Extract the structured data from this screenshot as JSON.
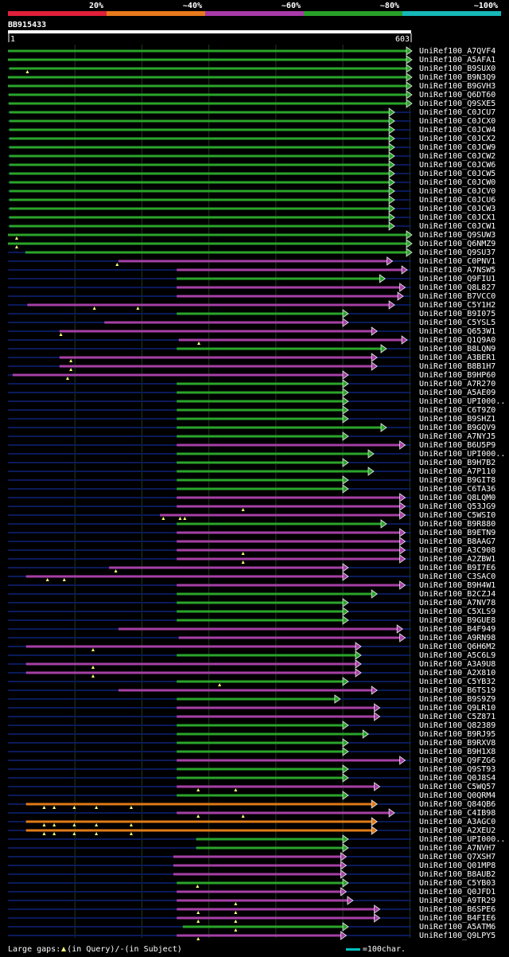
{
  "title": "BB915433",
  "query_length": 603,
  "ruler": {
    "start": "1",
    "end": "603"
  },
  "legend": [
    {
      "label": "20%",
      "color": "#e0203a"
    },
    {
      "label": "~40%",
      "color": "#e87a1c"
    },
    {
      "label": "~60%",
      "color": "#a83aa8"
    },
    {
      "label": "~80%",
      "color": "#28a028"
    },
    {
      "label": "~100%",
      "color": "#16b8b8"
    }
  ],
  "colors": {
    "green": "#2aa52a",
    "purple": "#a640a6",
    "orange": "#e07a18",
    "gap": "#ffff80",
    "dark": "#0a1a5a"
  },
  "footer": {
    "text1": "Large gaps: ",
    "text2": "(in Query)/",
    "text3": "(in Subject)",
    "scale": "=100char."
  },
  "hits": [
    {
      "id": "UniRef100_A7QVF4",
      "s": 1,
      "e": 603,
      "c": "g",
      "m": []
    },
    {
      "id": "UniRef100_A5AFA1",
      "s": 1,
      "e": 603,
      "c": "g",
      "m": []
    },
    {
      "id": "UniRef100_B9SUX0",
      "s": 3,
      "e": 603,
      "c": "g",
      "m": [
        30
      ]
    },
    {
      "id": "UniRef100_B9N3Q9",
      "s": 1,
      "e": 603,
      "c": "g",
      "m": []
    },
    {
      "id": "UniRef100_B9GVH3",
      "s": 1,
      "e": 603,
      "c": "g",
      "m": []
    },
    {
      "id": "UniRef100_Q6DT60",
      "s": 2,
      "e": 603,
      "c": "g",
      "m": []
    },
    {
      "id": "UniRef100_Q9SXE5",
      "s": 2,
      "e": 603,
      "c": "g",
      "m": []
    },
    {
      "id": "UniRef100_C0JCU7",
      "s": 3,
      "e": 577,
      "c": "g",
      "m": []
    },
    {
      "id": "UniRef100_C0JCX0",
      "s": 3,
      "e": 577,
      "c": "g",
      "m": []
    },
    {
      "id": "UniRef100_C0JCW4",
      "s": 3,
      "e": 577,
      "c": "g",
      "m": []
    },
    {
      "id": "UniRef100_C0JCX2",
      "s": 3,
      "e": 577,
      "c": "g",
      "m": []
    },
    {
      "id": "UniRef100_C0JCW9",
      "s": 3,
      "e": 577,
      "c": "g",
      "m": []
    },
    {
      "id": "UniRef100_C0JCW2",
      "s": 3,
      "e": 577,
      "c": "g",
      "m": []
    },
    {
      "id": "UniRef100_C0JCW6",
      "s": 3,
      "e": 577,
      "c": "g",
      "m": []
    },
    {
      "id": "UniRef100_C0JCW5",
      "s": 3,
      "e": 577,
      "c": "g",
      "m": []
    },
    {
      "id": "UniRef100_C0JCW0",
      "s": 3,
      "e": 577,
      "c": "g",
      "m": []
    },
    {
      "id": "UniRef100_C0JCV0",
      "s": 3,
      "e": 577,
      "c": "g",
      "m": []
    },
    {
      "id": "UniRef100_C0JCU6",
      "s": 3,
      "e": 577,
      "c": "g",
      "m": []
    },
    {
      "id": "UniRef100_C0JCW3",
      "s": 3,
      "e": 577,
      "c": "g",
      "m": []
    },
    {
      "id": "UniRef100_C0JCX1",
      "s": 3,
      "e": 577,
      "c": "g",
      "m": []
    },
    {
      "id": "UniRef100_C0JCW1",
      "s": 3,
      "e": 577,
      "c": "g",
      "m": []
    },
    {
      "id": "UniRef100_Q9SUW3",
      "s": 1,
      "e": 603,
      "c": "g",
      "m": [
        14
      ]
    },
    {
      "id": "UniRef100_Q6NMZ9",
      "s": 1,
      "e": 603,
      "c": "g",
      "m": [
        14
      ]
    },
    {
      "id": "UniRef100_Q9SU37",
      "s": 27,
      "e": 603,
      "c": "g",
      "m": []
    },
    {
      "id": "UniRef100_C0PNV1",
      "s": 166,
      "e": 574,
      "c": "p",
      "m": [
        164
      ]
    },
    {
      "id": "UniRef100_A7NSW5",
      "s": 253,
      "e": 596,
      "c": "p",
      "m": []
    },
    {
      "id": "UniRef100_Q9FIU1",
      "s": 253,
      "e": 563,
      "c": "g",
      "m": []
    },
    {
      "id": "UniRef100_Q8L827",
      "s": 253,
      "e": 593,
      "c": "p",
      "m": []
    },
    {
      "id": "UniRef100_B7VCC0",
      "s": 253,
      "e": 590,
      "c": "p",
      "m": []
    },
    {
      "id": "UniRef100_C5Y1H2",
      "s": 30,
      "e": 577,
      "c": "p",
      "m": [
        130,
        195
      ]
    },
    {
      "id": "UniRef100_B9I075",
      "s": 253,
      "e": 508,
      "c": "g",
      "m": []
    },
    {
      "id": "UniRef100_C5YSL5",
      "s": 145,
      "e": 508,
      "c": "p",
      "m": []
    },
    {
      "id": "UniRef100_Q653W1",
      "s": 78,
      "e": 551,
      "c": "p",
      "m": [
        80
      ]
    },
    {
      "id": "UniRef100_Q1Q9A0",
      "s": 256,
      "e": 596,
      "c": "p",
      "m": [
        286
      ]
    },
    {
      "id": "UniRef100_B8LQN9",
      "s": 253,
      "e": 565,
      "c": "g",
      "m": []
    },
    {
      "id": "UniRef100_A3BER1",
      "s": 78,
      "e": 551,
      "c": "p",
      "m": [
        95
      ]
    },
    {
      "id": "UniRef100_B8B1H7",
      "s": 78,
      "e": 551,
      "c": "p",
      "m": [
        95
      ]
    },
    {
      "id": "UniRef100_B9HP60",
      "s": 8,
      "e": 508,
      "c": "p",
      "m": [
        90
      ]
    },
    {
      "id": "UniRef100_A7R270",
      "s": 253,
      "e": 508,
      "c": "g",
      "m": []
    },
    {
      "id": "UniRef100_A5AE09",
      "s": 253,
      "e": 508,
      "c": "g",
      "m": []
    },
    {
      "id": "UniRef100_UPI000..",
      "s": 253,
      "e": 508,
      "c": "g",
      "m": []
    },
    {
      "id": "UniRef100_C6T9Z0",
      "s": 253,
      "e": 508,
      "c": "g",
      "m": []
    },
    {
      "id": "UniRef100_B9SHZ1",
      "s": 253,
      "e": 508,
      "c": "g",
      "m": []
    },
    {
      "id": "UniRef100_B9GQV9",
      "s": 253,
      "e": 565,
      "c": "g",
      "m": []
    },
    {
      "id": "UniRef100_A7NYJ5",
      "s": 253,
      "e": 508,
      "c": "g",
      "m": []
    },
    {
      "id": "UniRef100_B6U5P9",
      "s": 253,
      "e": 593,
      "c": "p",
      "m": []
    },
    {
      "id": "UniRef100_UPI000..",
      "s": 253,
      "e": 546,
      "c": "g",
      "m": []
    },
    {
      "id": "UniRef100_B9H7B2",
      "s": 253,
      "e": 508,
      "c": "g",
      "m": []
    },
    {
      "id": "UniRef100_A7P110",
      "s": 253,
      "e": 546,
      "c": "g",
      "m": []
    },
    {
      "id": "UniRef100_B9GIT8",
      "s": 253,
      "e": 508,
      "c": "g",
      "m": []
    },
    {
      "id": "UniRef100_C6TA36",
      "s": 253,
      "e": 508,
      "c": "g",
      "m": []
    },
    {
      "id": "UniRef100_Q8LQM0",
      "s": 253,
      "e": 593,
      "c": "p",
      "m": []
    },
    {
      "id": "UniRef100_Q53JG9",
      "s": 253,
      "e": 593,
      "c": "p",
      "m": [
        352
      ]
    },
    {
      "id": "UniRef100_C5WSI0",
      "s": 228,
      "e": 593,
      "c": "p",
      "m": [
        233,
        258,
        265
      ]
    },
    {
      "id": "UniRef100_B9R880",
      "s": 253,
      "e": 565,
      "c": "g",
      "m": []
    },
    {
      "id": "UniRef100_B9ETN9",
      "s": 253,
      "e": 593,
      "c": "p",
      "m": []
    },
    {
      "id": "UniRef100_B8AAG7",
      "s": 253,
      "e": 593,
      "c": "p",
      "m": []
    },
    {
      "id": "UniRef100_A3C908",
      "s": 253,
      "e": 593,
      "c": "p",
      "m": [
        352
      ]
    },
    {
      "id": "UniRef100_A2ZBW1",
      "s": 253,
      "e": 593,
      "c": "p",
      "m": [
        352
      ]
    },
    {
      "id": "UniRef100_B9I7E6",
      "s": 152,
      "e": 508,
      "c": "p",
      "m": [
        162
      ]
    },
    {
      "id": "UniRef100_C3SAC0",
      "s": 28,
      "e": 508,
      "c": "p",
      "m": [
        60,
        85
      ]
    },
    {
      "id": "UniRef100_B9H4W1",
      "s": 253,
      "e": 593,
      "c": "p",
      "m": []
    },
    {
      "id": "UniRef100_B2CZJ4",
      "s": 253,
      "e": 551,
      "c": "g",
      "m": []
    },
    {
      "id": "UniRef100_A7NV78",
      "s": 253,
      "e": 508,
      "c": "g",
      "m": []
    },
    {
      "id": "UniRef100_C5XLS9",
      "s": 253,
      "e": 508,
      "c": "g",
      "m": []
    },
    {
      "id": "UniRef100_B9GUE8",
      "s": 253,
      "e": 508,
      "c": "g",
      "m": []
    },
    {
      "id": "UniRef100_B4F949",
      "s": 166,
      "e": 589,
      "c": "p",
      "m": []
    },
    {
      "id": "UniRef100_A9RN98",
      "s": 256,
      "e": 593,
      "c": "p",
      "m": []
    },
    {
      "id": "UniRef100_Q6H6M2",
      "s": 28,
      "e": 527,
      "c": "p",
      "m": [
        128
      ]
    },
    {
      "id": "UniRef100_A5C6L9",
      "s": 253,
      "e": 527,
      "c": "g",
      "m": []
    },
    {
      "id": "UniRef100_A3A9U8",
      "s": 28,
      "e": 527,
      "c": "p",
      "m": [
        128
      ]
    },
    {
      "id": "UniRef100_A2X810",
      "s": 28,
      "e": 527,
      "c": "p",
      "m": [
        128
      ]
    },
    {
      "id": "UniRef100_C5YB32",
      "s": 253,
      "e": 508,
      "c": "g",
      "m": [
        317
      ]
    },
    {
      "id": "UniRef100_B6TS19",
      "s": 166,
      "e": 551,
      "c": "p",
      "m": []
    },
    {
      "id": "UniRef100_B9S9Z9",
      "s": 253,
      "e": 496,
      "c": "g",
      "m": []
    },
    {
      "id": "UniRef100_Q9LR10",
      "s": 253,
      "e": 555,
      "c": "p",
      "m": []
    },
    {
      "id": "UniRef100_C5Z871",
      "s": 253,
      "e": 555,
      "c": "p",
      "m": []
    },
    {
      "id": "UniRef100_Q82389",
      "s": 253,
      "e": 508,
      "c": "g",
      "m": []
    },
    {
      "id": "UniRef100_B9RJ95",
      "s": 253,
      "e": 538,
      "c": "g",
      "m": []
    },
    {
      "id": "UniRef100_B9RXV8",
      "s": 253,
      "e": 508,
      "c": "g",
      "m": []
    },
    {
      "id": "UniRef100_B9H1X8",
      "s": 253,
      "e": 508,
      "c": "g",
      "m": []
    },
    {
      "id": "UniRef100_Q9FZG6",
      "s": 253,
      "e": 593,
      "c": "p",
      "m": []
    },
    {
      "id": "UniRef100_Q9ST93",
      "s": 253,
      "e": 508,
      "c": "g",
      "m": []
    },
    {
      "id": "UniRef100_Q0J8S4",
      "s": 253,
      "e": 508,
      "c": "g",
      "m": []
    },
    {
      "id": "UniRef100_C5WQ57",
      "s": 253,
      "e": 555,
      "c": "p",
      "m": [
        285,
        341
      ]
    },
    {
      "id": "UniRef100_Q0QRM4",
      "s": 253,
      "e": 508,
      "c": "g",
      "m": []
    },
    {
      "id": "UniRef100_Q84QB6",
      "s": 28,
      "e": 551,
      "c": "o",
      "m": [
        55,
        70,
        100,
        133,
        185
      ]
    },
    {
      "id": "UniRef100_C4IB98",
      "s": 253,
      "e": 577,
      "c": "p",
      "m": [
        285,
        352
      ]
    },
    {
      "id": "UniRef100_A3AGC0",
      "s": 28,
      "e": 551,
      "c": "o",
      "m": [
        55,
        70,
        100,
        133,
        185
      ]
    },
    {
      "id": "UniRef100_A2XEU2",
      "s": 28,
      "e": 551,
      "c": "o",
      "m": [
        55,
        70,
        100,
        133,
        185
      ]
    },
    {
      "id": "UniRef100_UPI000..",
      "s": 282,
      "e": 508,
      "c": "g",
      "m": []
    },
    {
      "id": "UniRef100_A7NVH7",
      "s": 282,
      "e": 508,
      "c": "g",
      "m": []
    },
    {
      "id": "UniRef100_Q7XSH7",
      "s": 248,
      "e": 505,
      "c": "p",
      "m": []
    },
    {
      "id": "UniRef100_Q01MP8",
      "s": 248,
      "e": 505,
      "c": "p",
      "m": []
    },
    {
      "id": "UniRef100_B8AUB2",
      "s": 248,
      "e": 505,
      "c": "p",
      "m": []
    },
    {
      "id": "UniRef100_C5YB03",
      "s": 253,
      "e": 508,
      "c": "g",
      "m": [
        284
      ]
    },
    {
      "id": "UniRef100_Q0JFD1",
      "s": 253,
      "e": 505,
      "c": "p",
      "m": []
    },
    {
      "id": "UniRef100_A9TR29",
      "s": 253,
      "e": 515,
      "c": "p",
      "m": [
        341
      ]
    },
    {
      "id": "UniRef100_B6SPE6",
      "s": 253,
      "e": 555,
      "c": "p",
      "m": [
        285,
        341
      ]
    },
    {
      "id": "UniRef100_B4FIE6",
      "s": 253,
      "e": 555,
      "c": "p",
      "m": [
        285,
        341
      ]
    },
    {
      "id": "UniRef100_A5ATM6",
      "s": 262,
      "e": 508,
      "c": "g",
      "m": [
        341
      ]
    },
    {
      "id": "UniRef100_Q9LPY5",
      "s": 253,
      "e": 505,
      "c": "p",
      "m": [
        285
      ]
    }
  ]
}
